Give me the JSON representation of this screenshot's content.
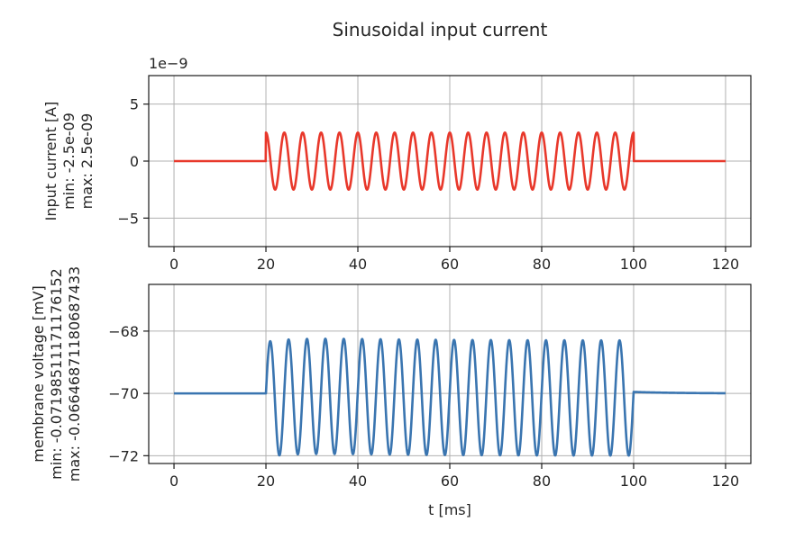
{
  "figure": {
    "title": "Sinusoidal input current"
  },
  "chart_data": [
    {
      "type": "line",
      "xlim": [
        -5.5,
        125.5
      ],
      "ylim": [
        -7.5e-09,
        7.5e-09
      ],
      "xticks": [
        0,
        20,
        40,
        60,
        80,
        100,
        120
      ],
      "yticks": [
        -5e-09,
        0,
        5e-09
      ],
      "ytick_labels": [
        "−5",
        "0",
        "5"
      ],
      "offset_label": "1e−9",
      "ylabel_lines": [
        "Input current [A]",
        "min: -2.5e-09",
        "max: 2.5e-09"
      ],
      "xlabel": "",
      "grid": true,
      "color": "#e8382b",
      "series": [
        {
          "t_start": 0,
          "t_end": 120,
          "sine_on": 20,
          "sine_off": 100,
          "amplitude": 2.5e-09,
          "period_ms": 4
        }
      ]
    },
    {
      "type": "line",
      "xlim": [
        -5.5,
        125.5
      ],
      "ylim": [
        -72.25,
        -66.5
      ],
      "xticks": [
        0,
        20,
        40,
        60,
        80,
        100,
        120
      ],
      "yticks": [
        -72,
        -70,
        -68
      ],
      "ytick_labels": [
        "−72",
        "−70",
        "−68"
      ],
      "ylabel_lines": [
        "membrane voltage [mV]",
        "min: -0.07198511171176152",
        "max: -0.06646871180687433"
      ],
      "xlabel": "t [ms]",
      "grid": true,
      "color": "#3a75b0",
      "series": [
        {
          "resting_mV": -70,
          "peak_mV": -66.47,
          "min_mV": -71.99,
          "end_mV": -70.16,
          "stim_on": 20,
          "stim_off": 100,
          "period_ms": 4
        }
      ]
    }
  ]
}
